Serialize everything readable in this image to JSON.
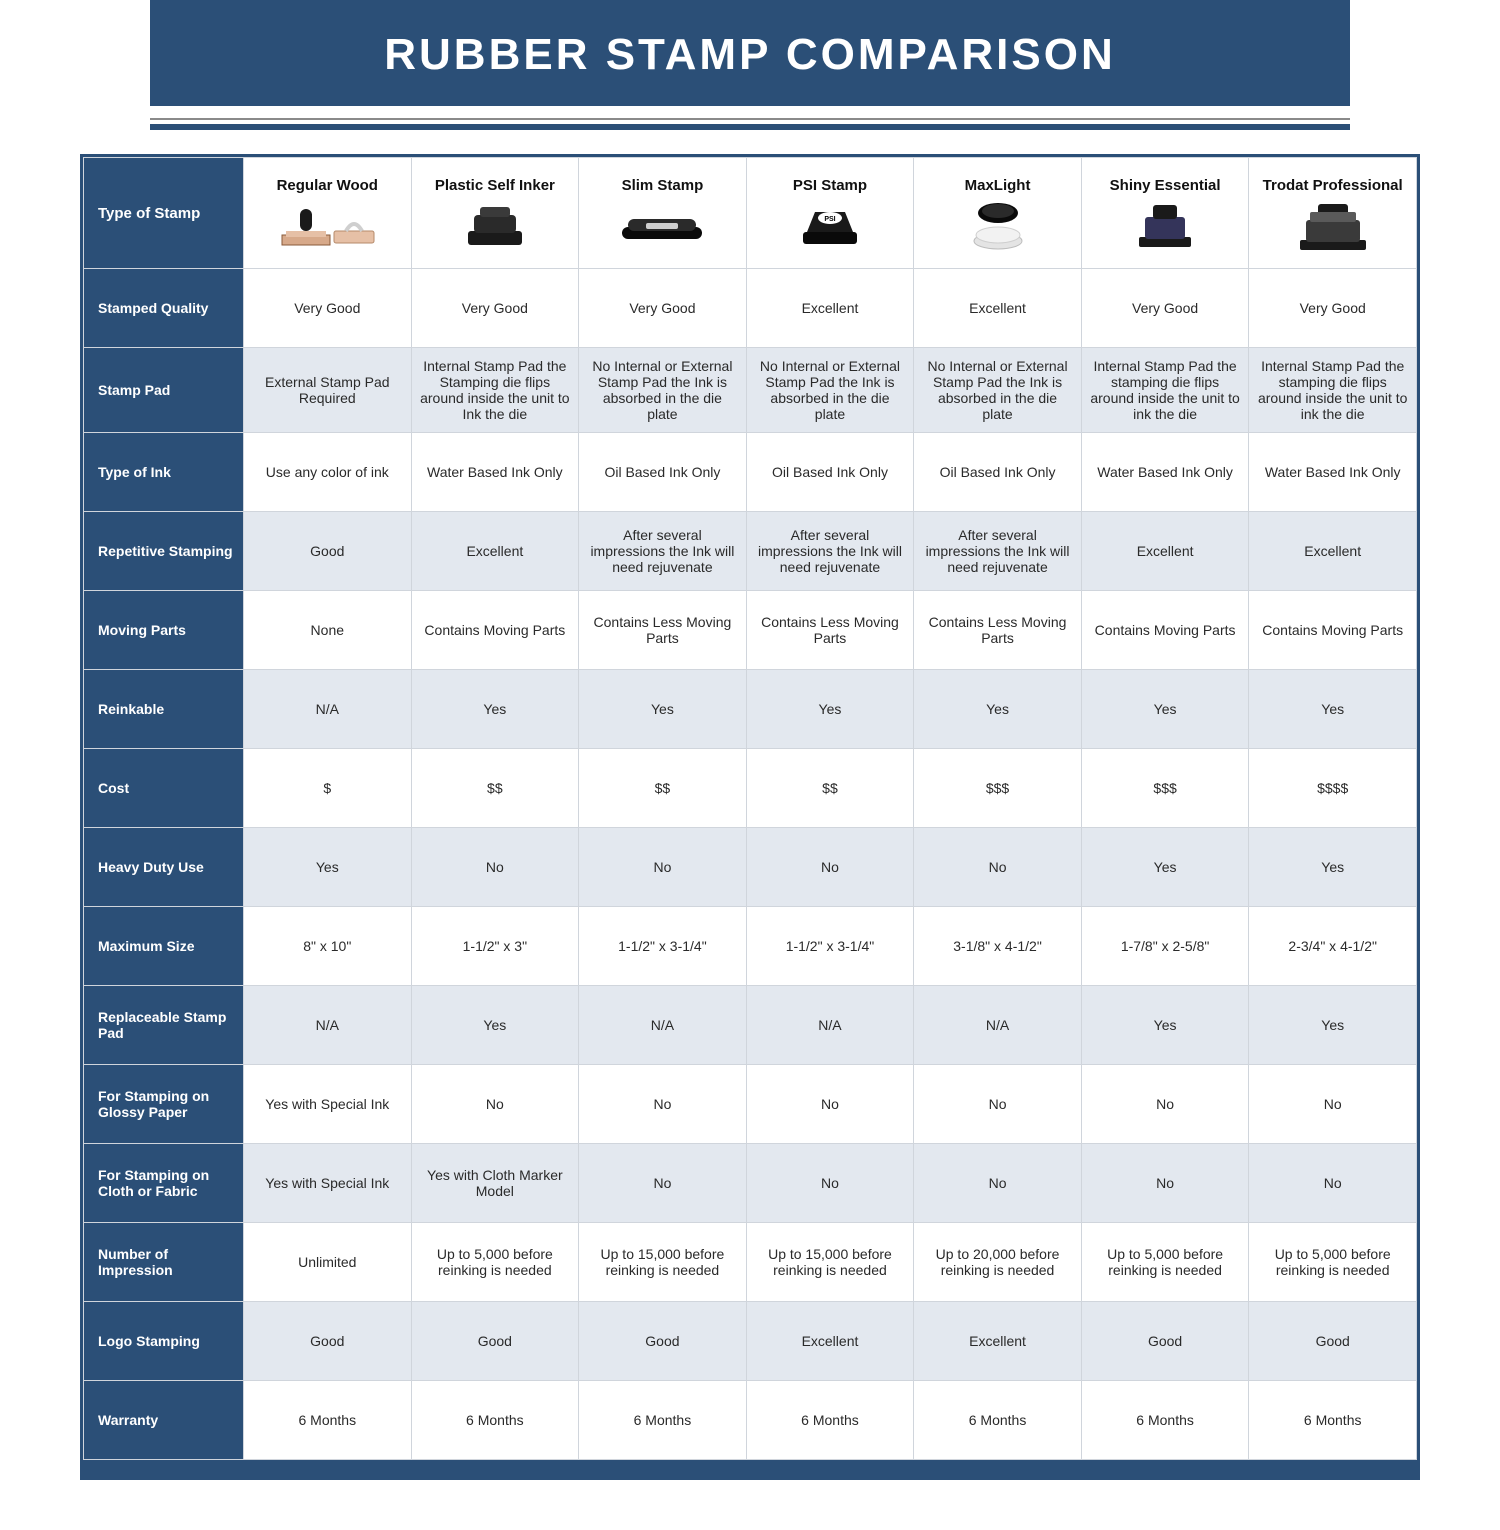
{
  "title": "RUBBER STAMP COMPARISON",
  "colors": {
    "primary": "#2b4f77",
    "shade_row": "#e3e8ef",
    "border": "#d0d5dc",
    "rule_top": "#8a8a8a"
  },
  "columns": [
    {
      "key": "regular_wood",
      "label": "Regular Wood"
    },
    {
      "key": "plastic_self_inker",
      "label": "Plastic Self Inker"
    },
    {
      "key": "slim_stamp",
      "label": "Slim Stamp"
    },
    {
      "key": "psi_stamp",
      "label": "PSI Stamp"
    },
    {
      "key": "maxlight",
      "label": "MaxLight"
    },
    {
      "key": "shiny_essential",
      "label": "Shiny Essential"
    },
    {
      "key": "trodat_professional",
      "label": "Trodat Professional"
    }
  ],
  "row_header_first": "Type of Stamp",
  "rows": [
    {
      "label": "Stamped Quality",
      "shade": false,
      "cells": [
        "Very Good",
        "Very Good",
        "Very Good",
        "Excellent",
        "Excellent",
        "Very Good",
        "Very Good"
      ]
    },
    {
      "label": "Stamp Pad",
      "shade": true,
      "cells": [
        "External Stamp Pad Required",
        "Internal Stamp Pad the Stamping die flips around inside the unit to Ink the die",
        "No Internal or External Stamp Pad the Ink is absorbed in the die plate",
        "No Internal or External Stamp Pad the Ink is absorbed in the die plate",
        "No Internal or External Stamp Pad the Ink is absorbed in the die plate",
        "Internal Stamp Pad the stamping die flips around inside the unit to ink the die",
        "Internal Stamp Pad the stamping die flips around inside the unit to ink the die"
      ]
    },
    {
      "label": "Type of Ink",
      "shade": false,
      "cells": [
        "Use any color of ink",
        "Water Based Ink Only",
        "Oil Based Ink Only",
        "Oil Based Ink Only",
        "Oil Based Ink Only",
        "Water Based Ink Only",
        "Water Based Ink Only"
      ]
    },
    {
      "label": "Repetitive Stamping",
      "shade": true,
      "cells": [
        "Good",
        "Excellent",
        "After several impressions the Ink will need rejuvenate",
        "After several impressions the Ink will need rejuvenate",
        "After several impressions the Ink will need rejuvenate",
        "Excellent",
        "Excellent"
      ]
    },
    {
      "label": "Moving Parts",
      "shade": false,
      "cells": [
        "None",
        "Contains Moving Parts",
        "Contains Less Moving Parts",
        "Contains Less Moving Parts",
        "Contains Less Moving Parts",
        "Contains Moving Parts",
        "Contains Moving Parts"
      ]
    },
    {
      "label": "Reinkable",
      "shade": true,
      "cells": [
        "N/A",
        "Yes",
        "Yes",
        "Yes",
        "Yes",
        "Yes",
        "Yes"
      ]
    },
    {
      "label": "Cost",
      "shade": false,
      "cells": [
        "$",
        "$$",
        "$$",
        "$$",
        "$$$",
        "$$$",
        "$$$$"
      ]
    },
    {
      "label": "Heavy Duty Use",
      "shade": true,
      "cells": [
        "Yes",
        "No",
        "No",
        "No",
        "No",
        "Yes",
        "Yes"
      ]
    },
    {
      "label": "Maximum Size",
      "shade": false,
      "cells": [
        "8\" x 10\"",
        "1-1/2\" x 3\"",
        "1-1/2\" x 3-1/4\"",
        "1-1/2\" x 3-1/4\"",
        "3-1/8\" x 4-1/2\"",
        "1-7/8\" x 2-5/8\"",
        "2-3/4\" x 4-1/2\""
      ]
    },
    {
      "label": "Replaceable Stamp Pad",
      "shade": true,
      "cells": [
        "N/A",
        "Yes",
        "N/A",
        "N/A",
        "N/A",
        "Yes",
        "Yes"
      ]
    },
    {
      "label": "For Stamping on Glossy Paper",
      "shade": false,
      "cells": [
        "Yes with Special Ink",
        "No",
        "No",
        "No",
        "No",
        "No",
        "No"
      ]
    },
    {
      "label": "For Stamping on Cloth or Fabric",
      "shade": true,
      "cells": [
        "Yes with Special Ink",
        "Yes with Cloth Marker Model",
        "No",
        "No",
        "No",
        "No",
        "No"
      ]
    },
    {
      "label": "Number of Impression",
      "shade": false,
      "cells": [
        "Unlimited",
        "Up to 5,000 before reinking is needed",
        "Up to 15,000 before reinking is needed",
        "Up to 15,000 before reinking is needed",
        "Up to 20,000 before reinking is needed",
        "Up to 5,000 before reinking is needed",
        "Up to 5,000 before reinking is needed"
      ]
    },
    {
      "label": "Logo Stamping",
      "shade": true,
      "cells": [
        "Good",
        "Good",
        "Good",
        "Excellent",
        "Excellent",
        "Good",
        "Good"
      ]
    },
    {
      "label": "Warranty",
      "shade": false,
      "cells": [
        "6 Months",
        "6 Months",
        "6 Months",
        "6 Months",
        "6 Months",
        "6 Months",
        "6 Months"
      ]
    }
  ]
}
